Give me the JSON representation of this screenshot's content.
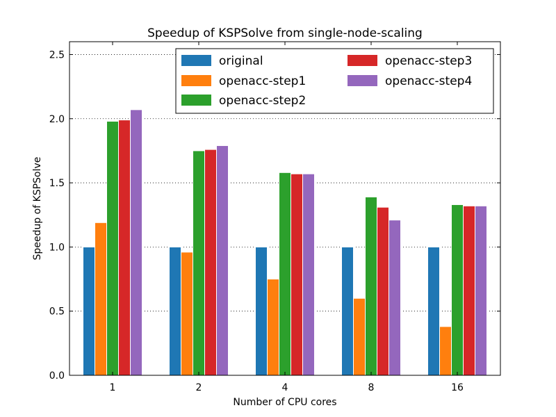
{
  "chart_data": {
    "type": "bar",
    "title": "Speedup of KSPSolve from single-node-scaling",
    "xlabel": "Number of CPU cores",
    "ylabel": "Speedup of KSPSolve",
    "categories": [
      "1",
      "2",
      "4",
      "8",
      "16"
    ],
    "ylim": [
      0,
      2.6
    ],
    "yticks": [
      "0.0",
      "0.5",
      "1.0",
      "1.5",
      "2.0",
      "2.5"
    ],
    "grid": "horizontal dotted",
    "legend_position": "top-right",
    "legend_columns": 2,
    "series": [
      {
        "name": "original",
        "color": "#1f77b4",
        "values": [
          1.0,
          1.0,
          1.0,
          1.0,
          1.0
        ]
      },
      {
        "name": "openacc-step1",
        "color": "#ff7f0e",
        "values": [
          1.19,
          0.96,
          0.75,
          0.6,
          0.38
        ]
      },
      {
        "name": "openacc-step2",
        "color": "#2ca02c",
        "values": [
          1.98,
          1.75,
          1.58,
          1.39,
          1.33
        ]
      },
      {
        "name": "openacc-step3",
        "color": "#d62728",
        "values": [
          1.99,
          1.76,
          1.57,
          1.31,
          1.32
        ]
      },
      {
        "name": "openacc-step4",
        "color": "#9467bd",
        "values": [
          2.07,
          1.79,
          1.57,
          1.21,
          1.32
        ]
      }
    ]
  }
}
